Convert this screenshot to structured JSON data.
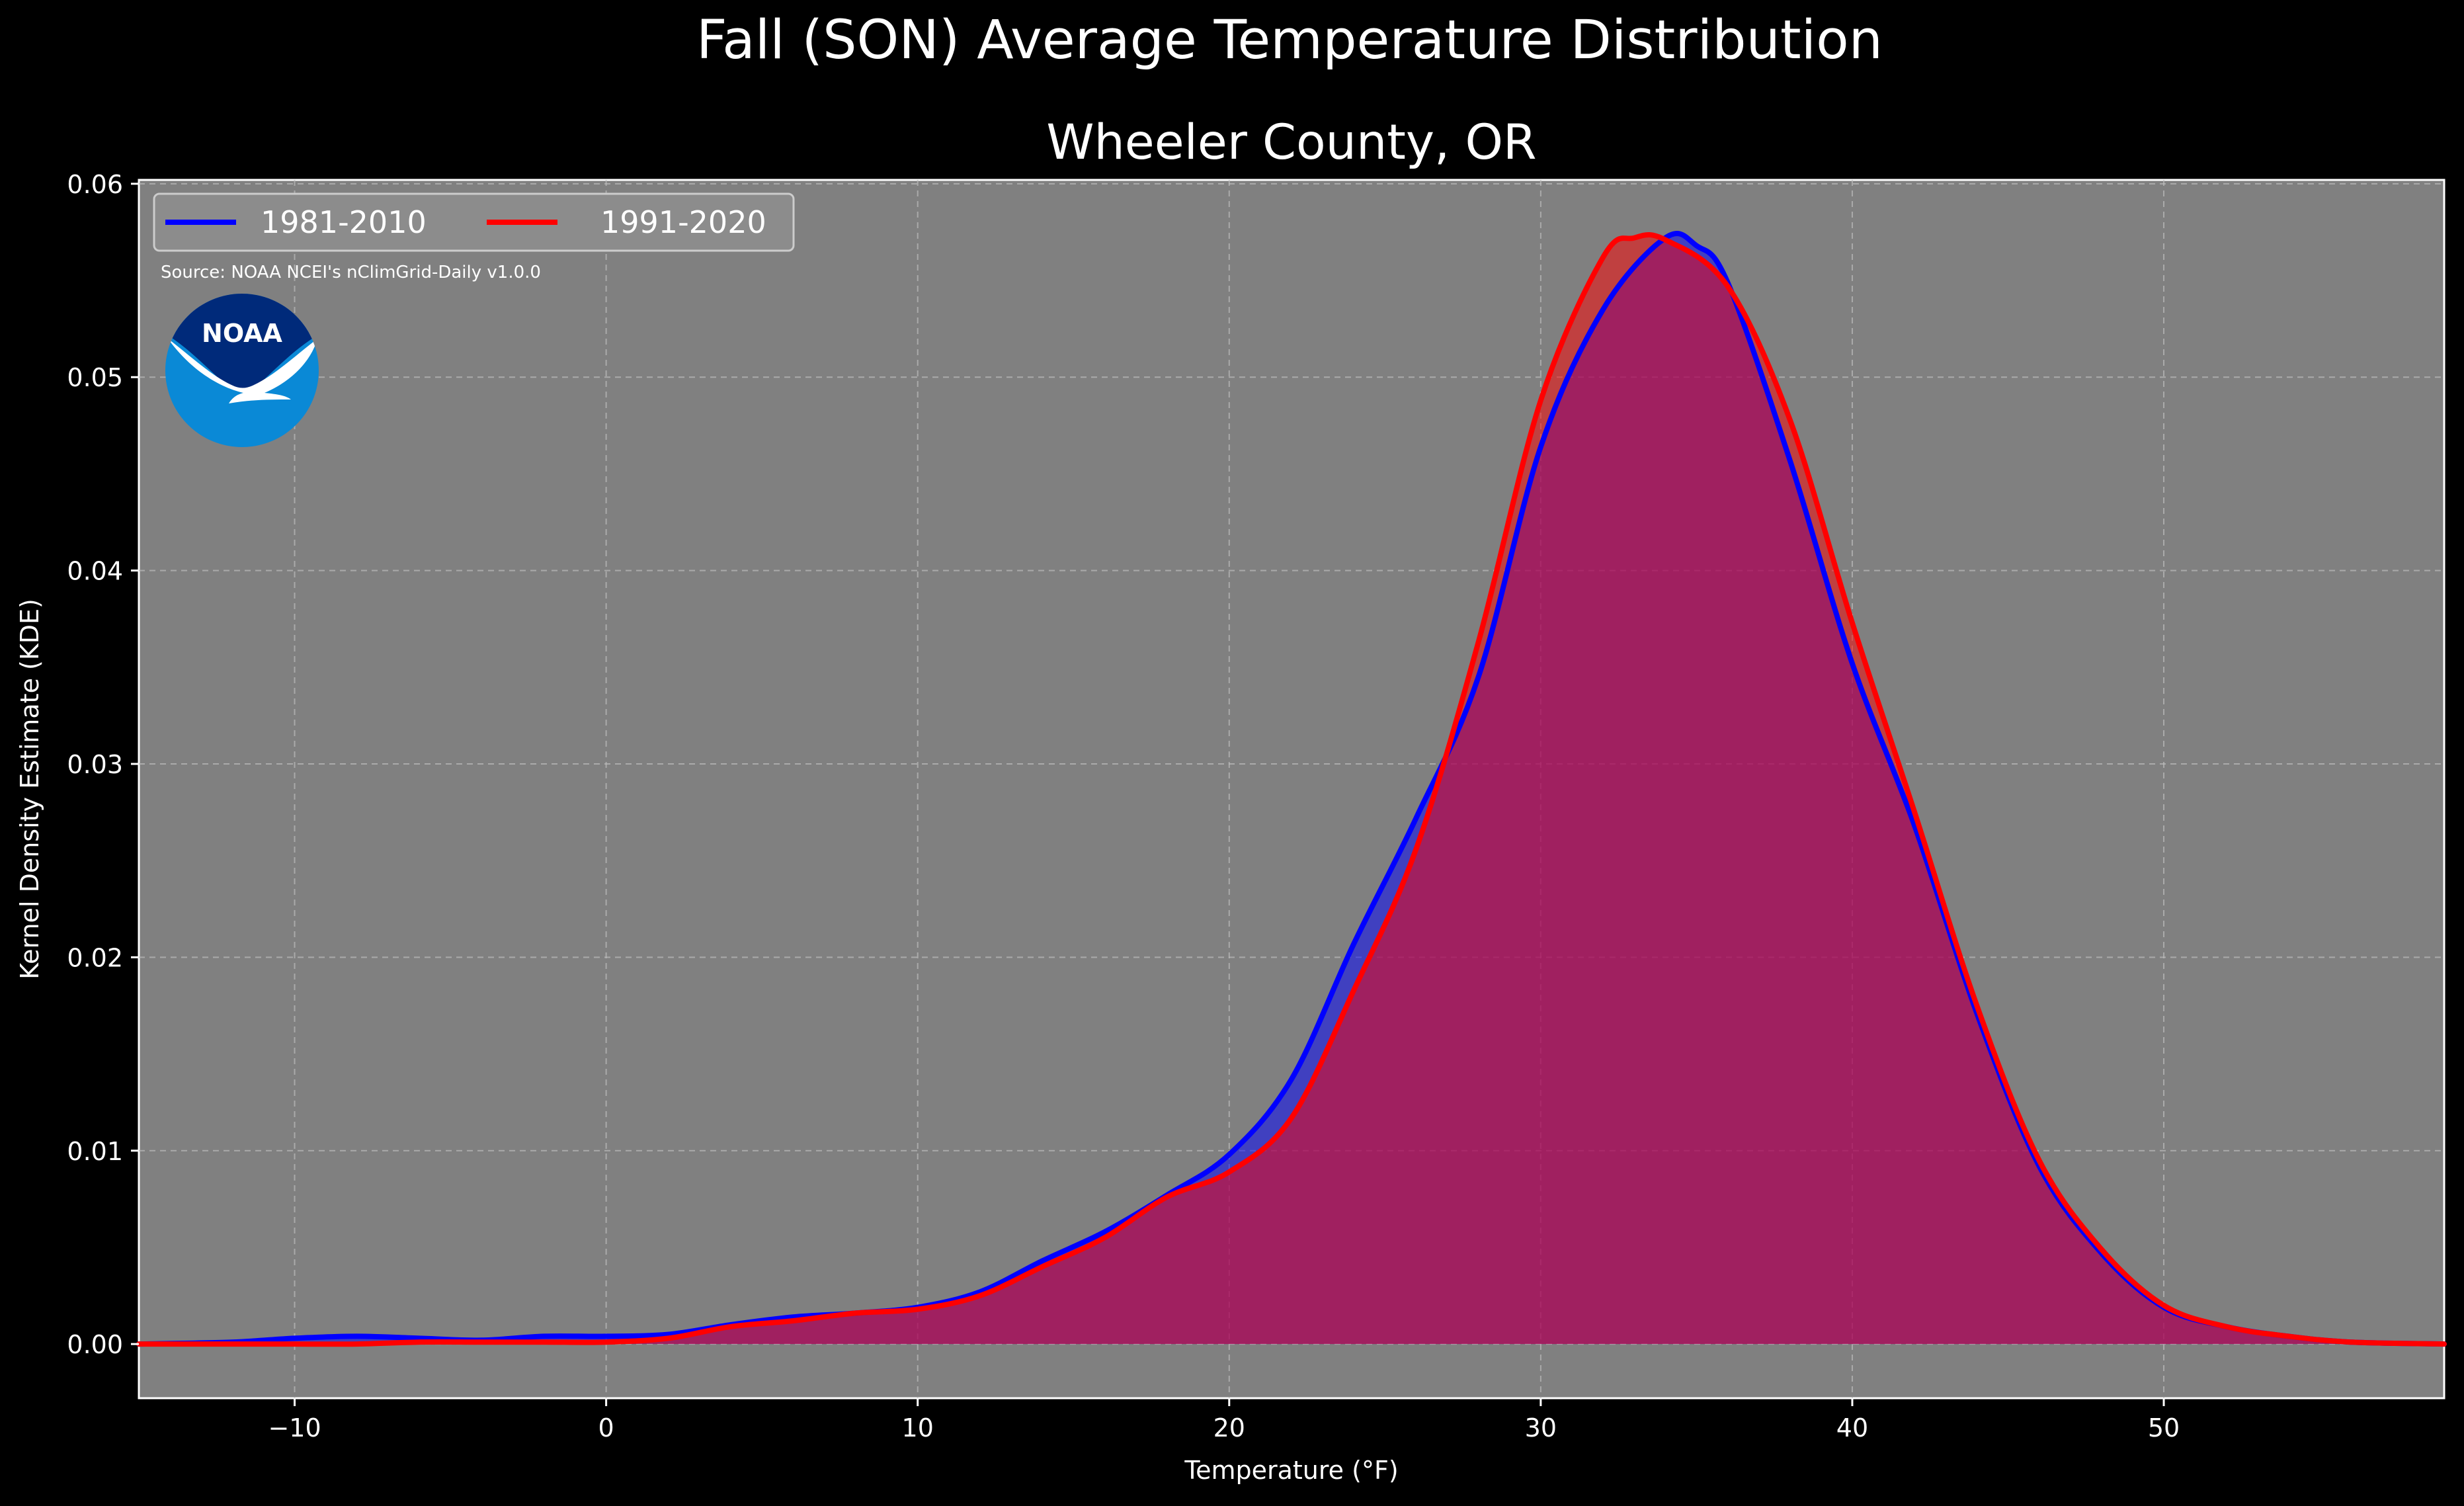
{
  "chart_data": {
    "type": "area",
    "suptitle": "Fall (SON) Average Temperature Distribution",
    "title": "Wheeler County, OR",
    "xlabel": "Temperature (°F)",
    "ylabel": "Kernel Density Estimate (KDE)",
    "xlim": [
      -15,
      59
    ],
    "ylim": [
      -0.0028,
      0.0602
    ],
    "xticks": [
      -10,
      0,
      10,
      20,
      30,
      40,
      50
    ],
    "xtick_labels": [
      "−10",
      "0",
      "10",
      "20",
      "30",
      "40",
      "50"
    ],
    "yticks": [
      0.0,
      0.01,
      0.02,
      0.03,
      0.04,
      0.05,
      0.06
    ],
    "ytick_labels": [
      "0.00",
      "0.01",
      "0.02",
      "0.03",
      "0.04",
      "0.05",
      "0.06"
    ],
    "grid": true,
    "legend_position": "top-left",
    "source_note": "Source: NOAA NCEI's nClimGrid-Daily v1.0.0",
    "logo_text": "NOAA",
    "colors": {
      "background": "#000000",
      "plot_background": "#808080",
      "series1": "#0000ff",
      "series2": "#ff0000"
    },
    "series": [
      {
        "name": "1981-2010",
        "color": "#0000ff",
        "x": [
          -15,
          -12,
          -10,
          -8,
          -6,
          -4,
          -2,
          0,
          2,
          4,
          6,
          8,
          10,
          12,
          14,
          16,
          18,
          20,
          22,
          24,
          26,
          28,
          30,
          32,
          34,
          35,
          36,
          38,
          40,
          42,
          44,
          46,
          48,
          50,
          52,
          54,
          56,
          59
        ],
        "y": [
          0.0,
          0.0001,
          0.0003,
          0.0004,
          0.0003,
          0.0002,
          0.0004,
          0.0004,
          0.0005,
          0.001,
          0.0014,
          0.0016,
          0.0019,
          0.0027,
          0.0043,
          0.0058,
          0.0077,
          0.0098,
          0.0137,
          0.0207,
          0.0272,
          0.0345,
          0.0464,
          0.0535,
          0.0572,
          0.0568,
          0.0549,
          0.0457,
          0.0352,
          0.0268,
          0.0171,
          0.0092,
          0.0047,
          0.0019,
          0.0009,
          0.0004,
          0.0001,
          0.0
        ]
      },
      {
        "name": "1991-2020",
        "color": "#ff0000",
        "x": [
          -15,
          -12,
          -10,
          -8,
          -6,
          -4,
          -2,
          0,
          2,
          4,
          6,
          8,
          10,
          12,
          14,
          16,
          18,
          20,
          22,
          24,
          26,
          28,
          30,
          32,
          33,
          34,
          36,
          38,
          40,
          42,
          44,
          46,
          48,
          50,
          52,
          54,
          56,
          59
        ],
        "y": [
          0.0,
          0.0,
          0.0,
          0.0,
          0.0001,
          0.0001,
          0.0001,
          0.0001,
          0.0003,
          0.0009,
          0.0012,
          0.0016,
          0.0018,
          0.0025,
          0.004,
          0.0055,
          0.0076,
          0.0089,
          0.0117,
          0.0183,
          0.0256,
          0.0363,
          0.0488,
          0.0562,
          0.0572,
          0.0571,
          0.0547,
          0.0478,
          0.0373,
          0.0275,
          0.0175,
          0.0095,
          0.0049,
          0.002,
          0.0009,
          0.0004,
          0.0001,
          0.0
        ]
      }
    ]
  }
}
